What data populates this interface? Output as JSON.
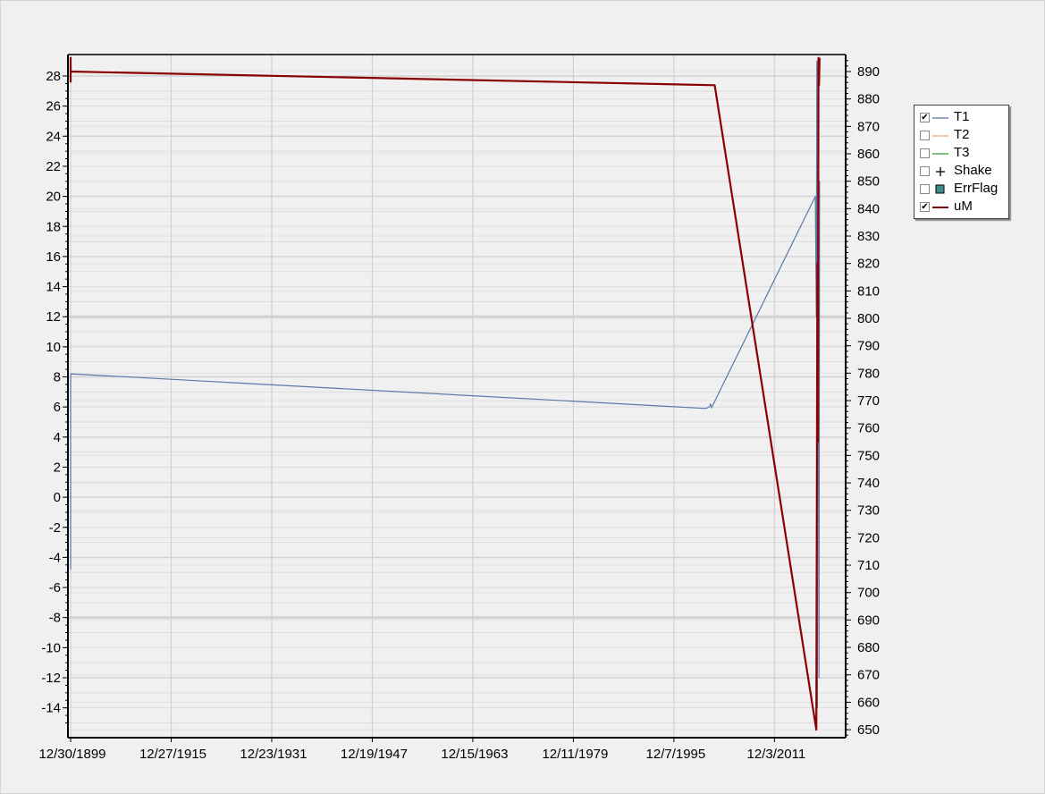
{
  "chart_data": {
    "type": "line",
    "x_type": "date",
    "x_tick_labels": [
      "12/30/1899",
      "12/27/1915",
      "12/23/1931",
      "12/19/1947",
      "12/15/1963",
      "12/11/1979",
      "12/7/1995",
      "12/3/2011"
    ],
    "left_axis": {
      "ylim": [
        -16,
        29
      ],
      "tick_labels": [
        "28",
        "26",
        "24",
        "22",
        "20",
        "18",
        "16",
        "14",
        "12",
        "10",
        "8",
        "6",
        "4",
        "2",
        "0",
        "-2",
        "-4",
        "-6",
        "-8",
        "-10",
        "-12",
        "-14"
      ]
    },
    "right_axis": {
      "ylim": [
        647,
        896
      ],
      "tick_labels": [
        "890",
        "880",
        "870",
        "860",
        "850",
        "840",
        "830",
        "820",
        "810",
        "800",
        "790",
        "780",
        "770",
        "760",
        "750",
        "740",
        "730",
        "720",
        "710",
        "700",
        "690",
        "680",
        "670",
        "660",
        "650"
      ]
    },
    "grid": true,
    "legend_position": "right",
    "legend": [
      {
        "name": "T1",
        "checked": true,
        "color": "#5a78a8",
        "marker": "line"
      },
      {
        "name": "T2",
        "checked": false,
        "color": "#f4a860",
        "marker": "line"
      },
      {
        "name": "T3",
        "checked": false,
        "color": "#3a9a3a",
        "marker": "line"
      },
      {
        "name": "Shake",
        "checked": false,
        "color": "#000000",
        "marker": "plus"
      },
      {
        "name": "ErrFlag",
        "checked": false,
        "color": "#3d8c8c",
        "marker": "square"
      },
      {
        "name": "uM",
        "checked": true,
        "color": "#8b0000",
        "marker": "line"
      }
    ],
    "series": [
      {
        "name": "T1",
        "axis": "left",
        "color": "#5a78a8",
        "points": [
          [
            "1899-12-30",
            -4.8
          ],
          [
            "1899-12-31",
            7.0
          ],
          [
            "1900-01-02",
            8.2
          ],
          [
            "2001-01-01",
            5.9
          ],
          [
            "2001-08-01",
            6.0
          ],
          [
            "2001-10-01",
            6.2
          ],
          [
            "2001-12-01",
            5.95
          ],
          [
            "2018-06-01",
            20.0
          ],
          [
            "2018-08-01",
            12.0
          ],
          [
            "2018-09-01",
            29.0
          ],
          [
            "2018-10-01",
            -14.0
          ],
          [
            "2018-11-01",
            28.5
          ],
          [
            "2019-01-01",
            -12.0
          ],
          [
            "2019-02-01",
            21.0
          ]
        ]
      },
      {
        "name": "uM",
        "axis": "right",
        "color": "#8b0000",
        "points": [
          [
            "1899-12-30",
            886
          ],
          [
            "1899-12-31",
            895
          ],
          [
            "1900-01-02",
            890
          ],
          [
            "2002-06-01",
            885
          ],
          [
            "2018-08-01",
            650
          ],
          [
            "2018-10-01",
            820
          ],
          [
            "2018-11-01",
            755
          ],
          [
            "2018-12-01",
            895
          ],
          [
            "2019-01-01",
            885
          ],
          [
            "2019-02-01",
            895
          ]
        ]
      }
    ]
  }
}
